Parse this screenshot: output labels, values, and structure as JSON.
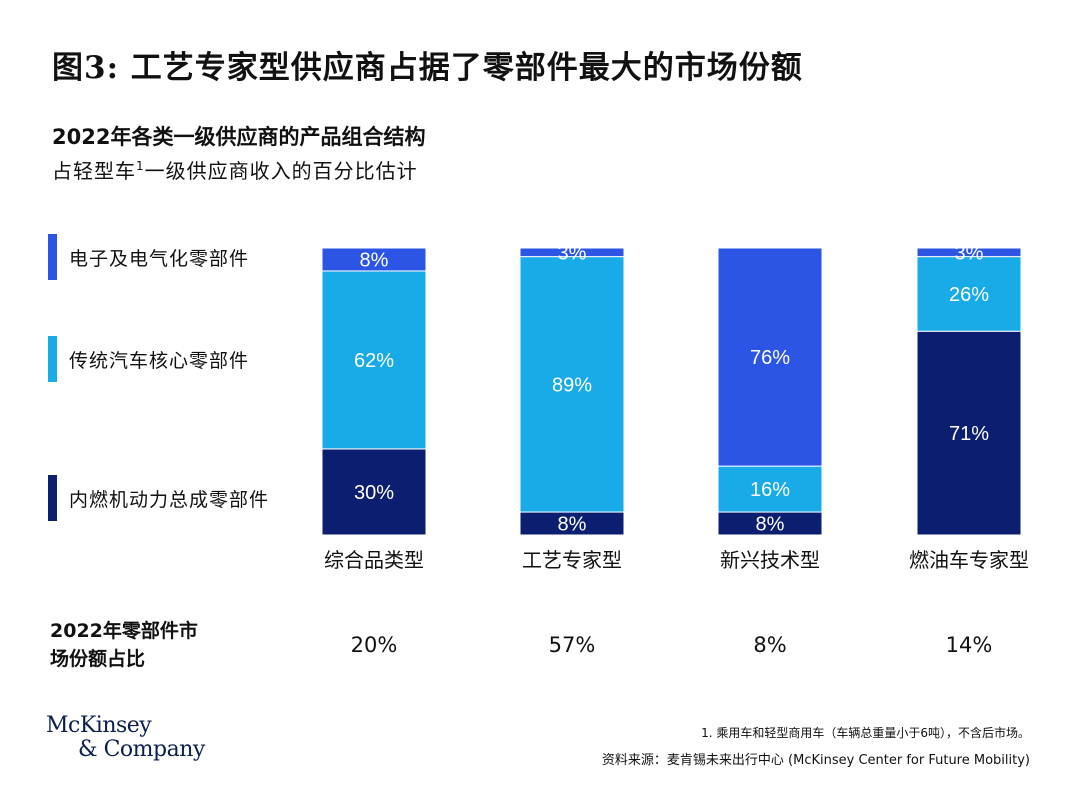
{
  "title": "图3: 工艺专家型供应商占据了零部件最大的市场份额",
  "subtitle": "2022年各类一级供应商的产品组合结构",
  "subnote_main": "占轻型车",
  "subnote_sup": "1",
  "subnote_rest": "一级供应商收入的百分比估计",
  "colors": {
    "electronics": "#2c55e6",
    "traditional": "#19aae8",
    "ice": "#0c1e6f"
  },
  "legend": [
    {
      "label": "电子及电气化零部件",
      "color": "#2c55e6"
    },
    {
      "label": "传统汽车核心零部件",
      "color": "#19aae8"
    },
    {
      "label": "内燃机动力总成零部件",
      "color": "#0c1e6f"
    }
  ],
  "chart_data": {
    "type": "bar",
    "stacked": true,
    "categories": [
      "综合品类型",
      "工艺专家型",
      "新兴技术型",
      "燃油车专家型"
    ],
    "series": [
      {
        "name": "内燃机动力总成零部件",
        "values": [
          30,
          8,
          8,
          71
        ],
        "labels": [
          "30%",
          "8%",
          "8%",
          "71%"
        ],
        "color": "#0c1e6f"
      },
      {
        "name": "传统汽车核心零部件",
        "values": [
          62,
          89,
          16,
          26
        ],
        "labels": [
          "62%",
          "89%",
          "16%",
          "26%"
        ],
        "color": "#19aae8"
      },
      {
        "name": "电子及电气化零部件",
        "values": [
          8,
          3,
          76,
          3
        ],
        "labels": [
          "8%",
          "3%",
          "76%",
          "3%"
        ],
        "color": "#2c55e6"
      }
    ],
    "ylim": [
      0,
      100
    ]
  },
  "market_share": {
    "label_line1": "2022年零部件市",
    "label_line2": "场份额占比",
    "values": [
      "20%",
      "57%",
      "8%",
      "14%"
    ]
  },
  "logo": {
    "line1": "McKinsey",
    "line2": "& Company"
  },
  "footnote": "1.  乘用车和轻型商用车（车辆总重量小于6吨），不含后市场。",
  "source": "资料来源：麦肯锡未来出行中心 (McKinsey Center for Future Mobility)"
}
